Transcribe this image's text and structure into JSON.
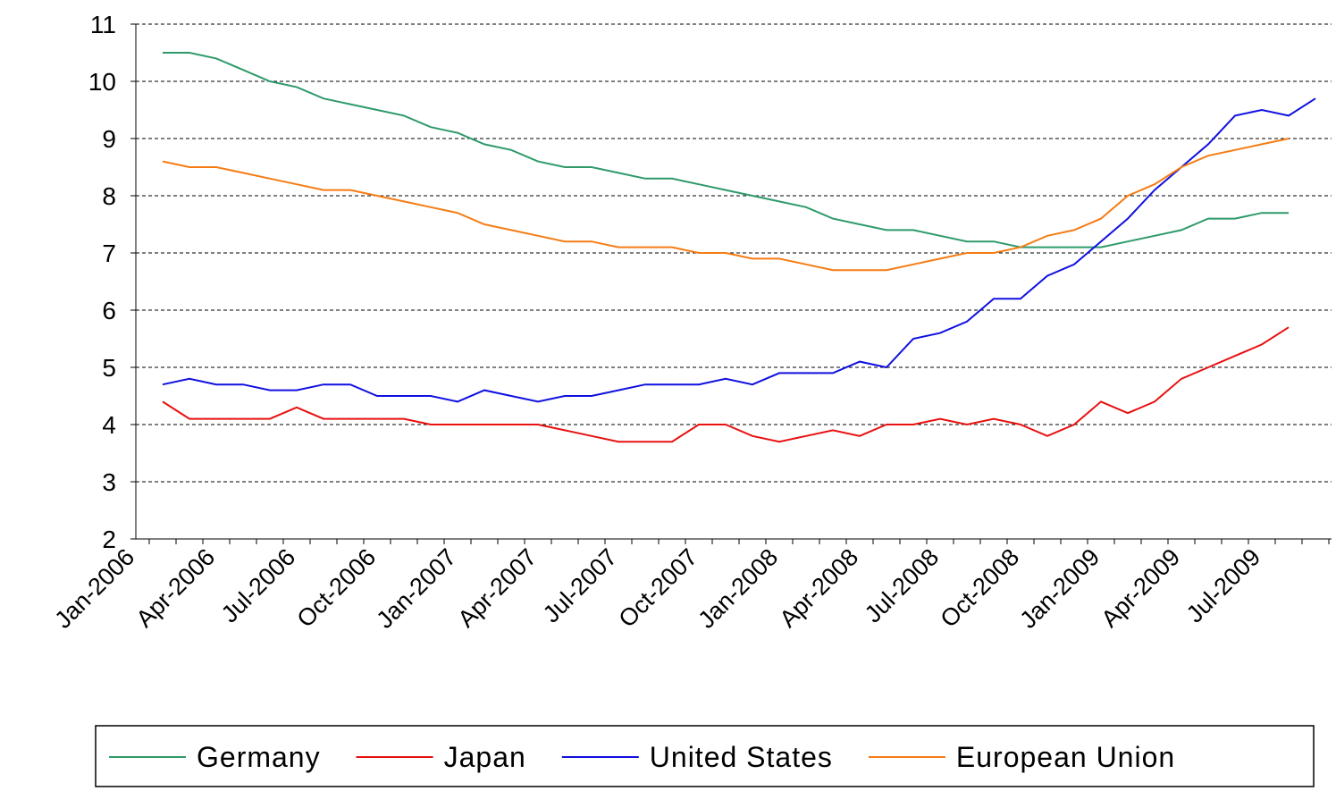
{
  "chart_data": {
    "type": "line",
    "categories": [
      "Jan-2006",
      null,
      null,
      "Apr-2006",
      null,
      null,
      "Jul-2006",
      null,
      null,
      "Oct-2006",
      null,
      null,
      "Jan-2007",
      null,
      null,
      "Apr-2007",
      null,
      null,
      "Jul-2007",
      null,
      null,
      "Oct-2007",
      null,
      null,
      "Jan-2008",
      null,
      null,
      "Apr-2008",
      null,
      null,
      "Jul-2008",
      null,
      null,
      "Oct-2008",
      null,
      null,
      "Jan-2009",
      null,
      null,
      "Apr-2009",
      null,
      null,
      "Jul-2009",
      null,
      null
    ],
    "series": [
      {
        "name": "Germany",
        "color": "#2e9a6a",
        "values": [
          null,
          10.5,
          10.5,
          10.4,
          10.2,
          10.0,
          9.9,
          9.7,
          9.6,
          9.5,
          9.4,
          9.2,
          9.1,
          8.9,
          8.8,
          8.6,
          8.5,
          8.5,
          8.4,
          8.3,
          8.3,
          8.2,
          8.1,
          8.0,
          7.9,
          7.8,
          7.6,
          7.5,
          7.4,
          7.4,
          7.3,
          7.2,
          7.2,
          7.1,
          7.1,
          7.1,
          7.1,
          7.2,
          7.3,
          7.4,
          7.6,
          7.6,
          7.7,
          7.7,
          null
        ]
      },
      {
        "name": "Japan",
        "color": "#e81010",
        "values": [
          null,
          4.4,
          4.1,
          4.1,
          4.1,
          4.1,
          4.3,
          4.1,
          4.1,
          4.1,
          4.1,
          4.0,
          4.0,
          4.0,
          4.0,
          4.0,
          3.9,
          3.8,
          3.7,
          3.7,
          3.7,
          4.0,
          4.0,
          3.8,
          3.7,
          3.8,
          3.9,
          3.8,
          4.0,
          4.0,
          4.1,
          4.0,
          4.1,
          4.0,
          3.8,
          4.0,
          4.4,
          4.2,
          4.4,
          4.8,
          5.0,
          5.2,
          5.4,
          5.7,
          null
        ]
      },
      {
        "name": "United States",
        "color": "#1010e0",
        "values": [
          null,
          4.7,
          4.8,
          4.7,
          4.7,
          4.6,
          4.6,
          4.7,
          4.7,
          4.5,
          4.5,
          4.5,
          4.4,
          4.6,
          4.5,
          4.4,
          4.5,
          4.5,
          4.6,
          4.7,
          4.7,
          4.7,
          4.8,
          4.7,
          4.9,
          4.9,
          4.9,
          5.1,
          5.0,
          5.5,
          5.6,
          5.8,
          6.2,
          6.2,
          6.6,
          6.8,
          7.2,
          7.6,
          8.1,
          8.5,
          8.9,
          9.4,
          9.5,
          9.4,
          9.7
        ]
      },
      {
        "name": "European Union",
        "color": "#f57c14",
        "values": [
          null,
          8.6,
          8.5,
          8.5,
          8.4,
          8.3,
          8.2,
          8.1,
          8.1,
          8.0,
          7.9,
          7.8,
          7.7,
          7.5,
          7.4,
          7.3,
          7.2,
          7.2,
          7.1,
          7.1,
          7.1,
          7.0,
          7.0,
          6.9,
          6.9,
          6.8,
          6.7,
          6.7,
          6.7,
          6.8,
          6.9,
          7.0,
          7.0,
          7.1,
          7.3,
          7.4,
          7.6,
          8.0,
          8.2,
          8.5,
          8.7,
          8.8,
          8.9,
          9.0,
          null
        ]
      }
    ],
    "ylim": [
      2,
      11
    ],
    "yticks": [
      2,
      3,
      4,
      5,
      6,
      7,
      8,
      9,
      10,
      11
    ],
    "grid": true,
    "legend": "bottom"
  }
}
